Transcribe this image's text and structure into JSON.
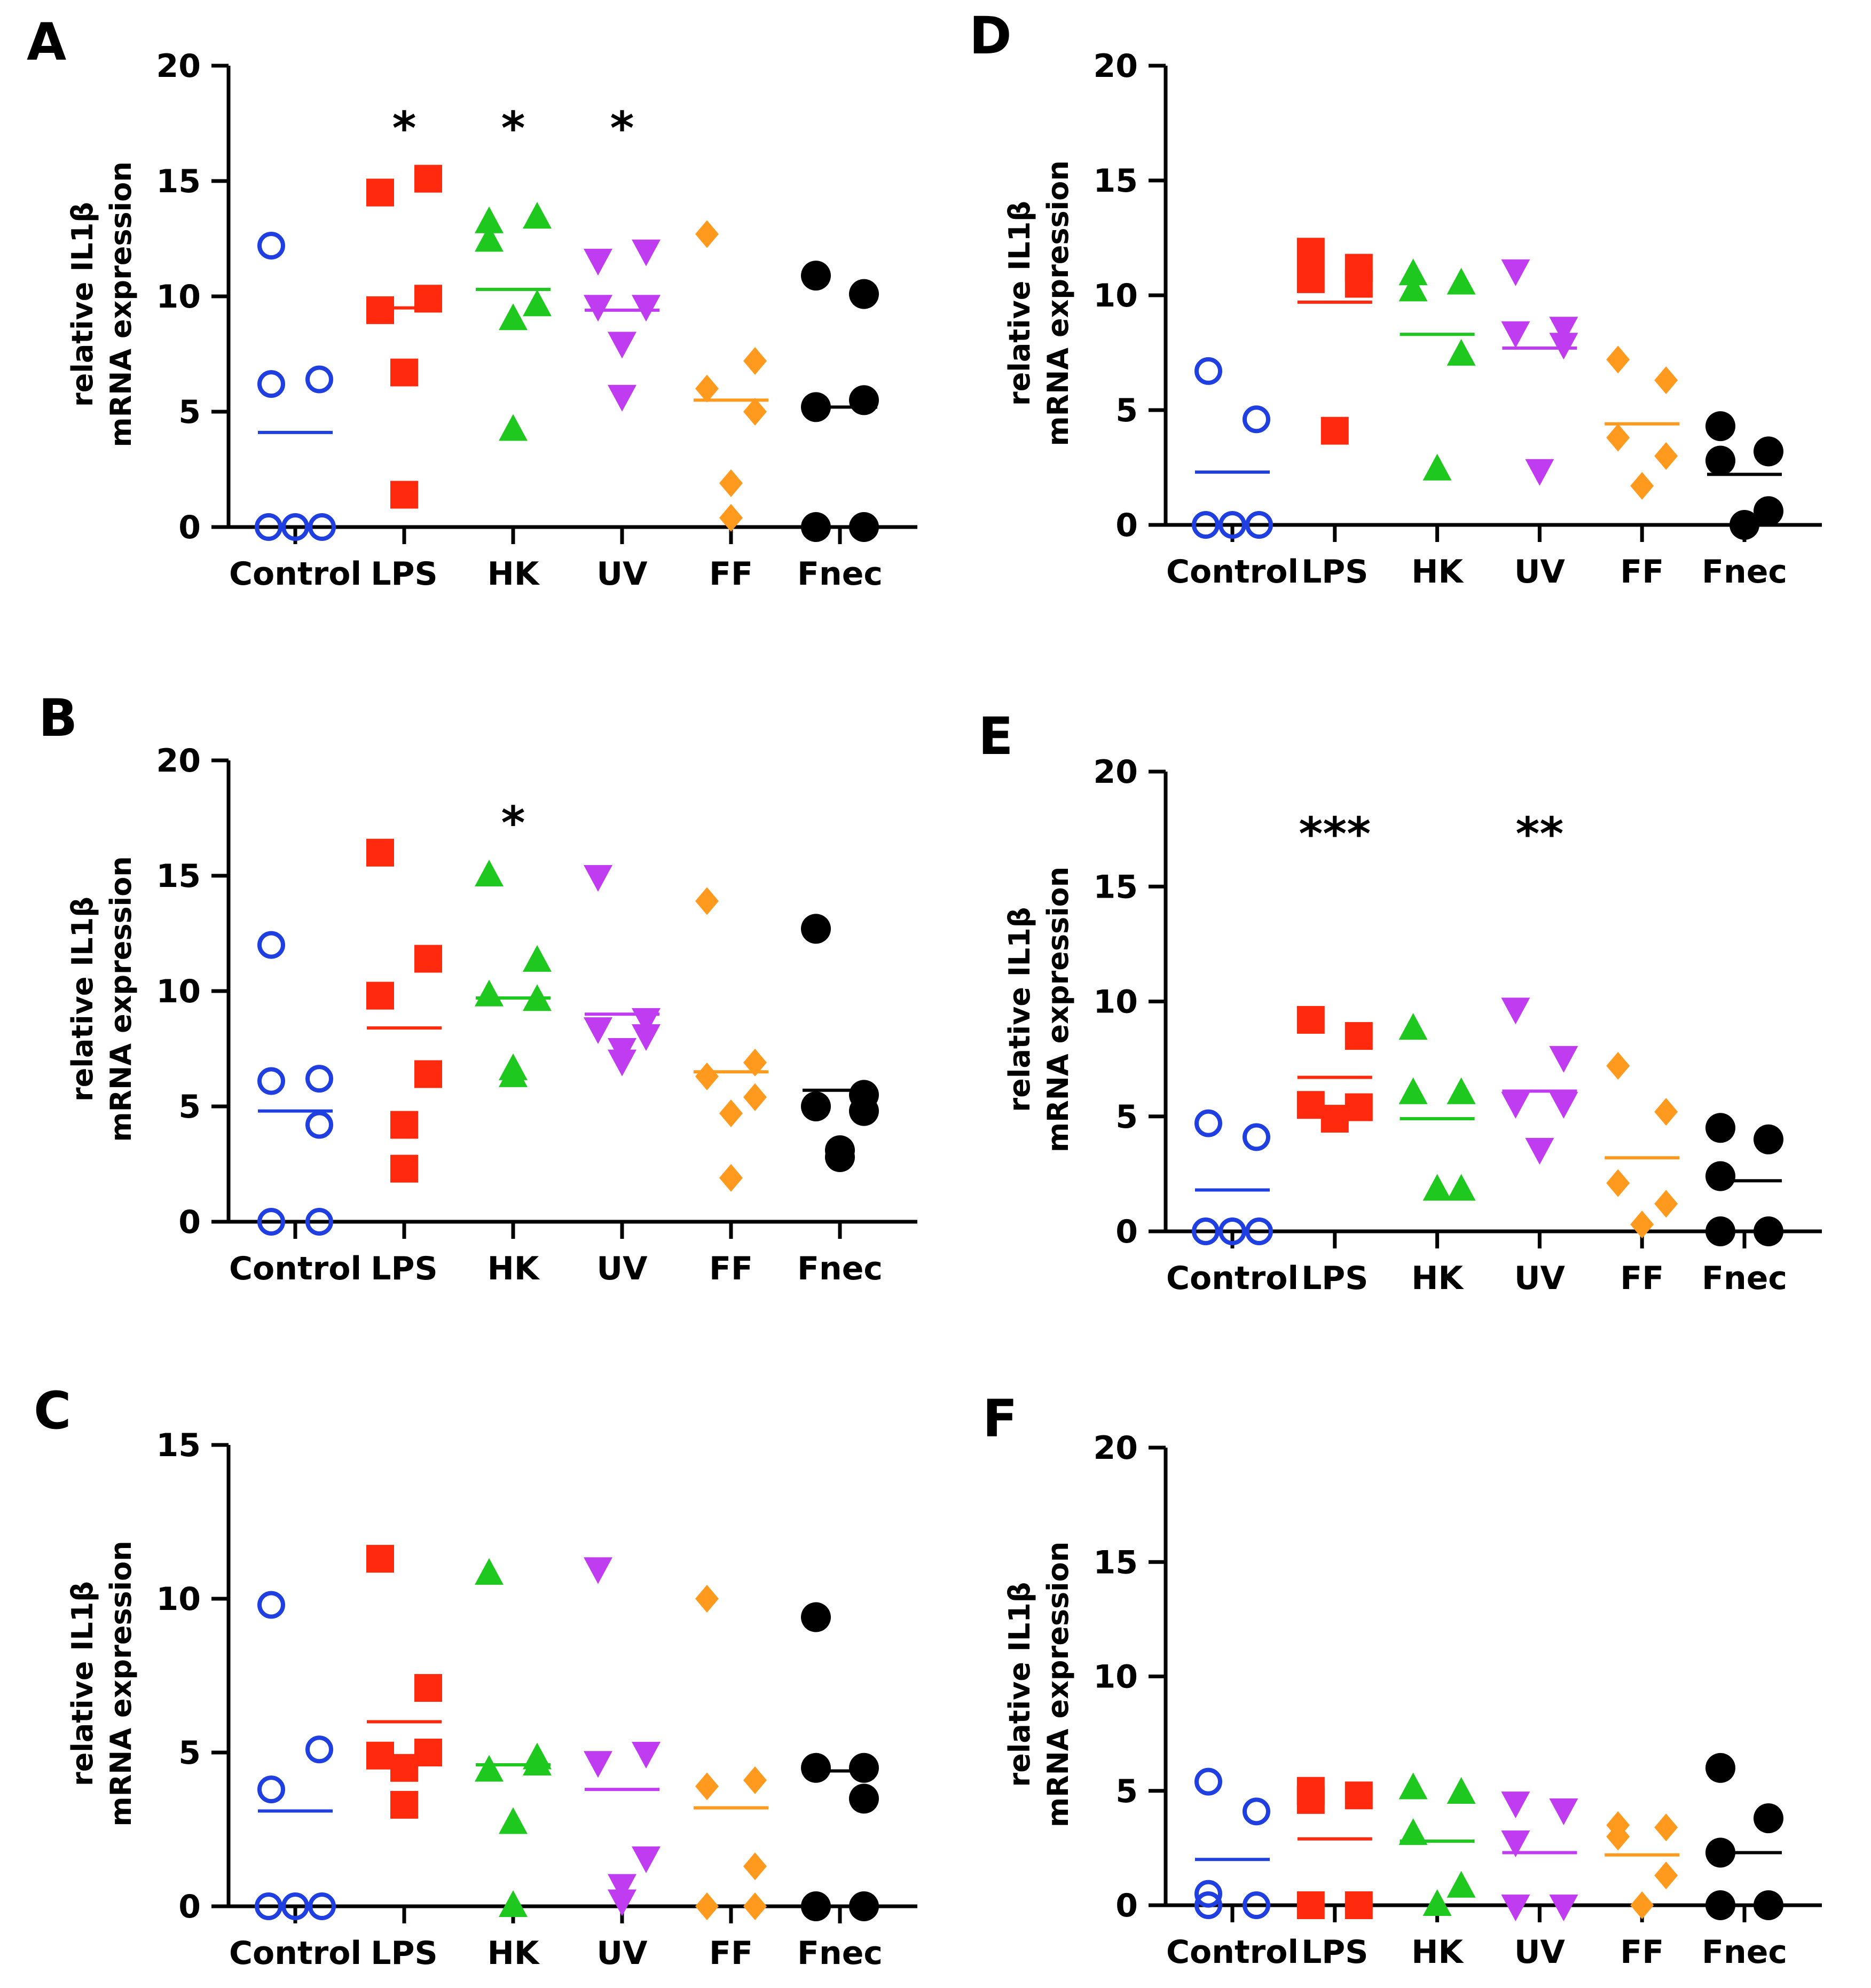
{
  "figure": {
    "category_colors": {
      "Control": "#1f3fe0",
      "LPS": "#ff2a0e",
      "HK": "#1ec81e",
      "UV": "#c03cf0",
      "FF": "#ff9a1e",
      "Fnec": "#000000"
    },
    "marker_shapes": {
      "Control": "open-circle",
      "LPS": "square",
      "HK": "triangle-up",
      "UV": "triangle-down",
      "FF": "diamond",
      "Fnec": "filled-circle"
    }
  },
  "chart_data": [
    {
      "panel": "A",
      "type": "scatter",
      "ylabel_line1": "relative IL1β",
      "ylabel_line2": "mRNA expression",
      "ylim": [
        0,
        20
      ],
      "yticks": [
        "0",
        "5",
        "10",
        "15",
        "20"
      ],
      "categories": [
        "Control",
        "LPS",
        "HK",
        "UV",
        "FF",
        "Fnec"
      ],
      "series": [
        {
          "name": "Control",
          "values": [
            12.2,
            6.4,
            6.2,
            0,
            0,
            0
          ],
          "median": 4.1,
          "significance": ""
        },
        {
          "name": "LPS",
          "values": [
            14.5,
            15.1,
            9.4,
            9.9,
            6.7,
            1.4
          ],
          "median": 9.5,
          "significance": "*"
        },
        {
          "name": "HK",
          "values": [
            13.2,
            13.4,
            12.4,
            9.6,
            9.0,
            4.2
          ],
          "median": 10.3,
          "significance": "*"
        },
        {
          "name": "UV",
          "values": [
            11.6,
            12.0,
            9.6,
            9.6,
            8.0,
            5.7
          ],
          "median": 9.4,
          "significance": "*"
        },
        {
          "name": "FF",
          "values": [
            12.7,
            7.2,
            6.0,
            5.0,
            1.9,
            0.4
          ],
          "median": 5.5,
          "significance": ""
        },
        {
          "name": "Fnec",
          "values": [
            10.9,
            10.1,
            5.2,
            5.5,
            0,
            0
          ],
          "median": 5.2,
          "significance": ""
        }
      ]
    },
    {
      "panel": "B",
      "type": "scatter",
      "ylabel_line1": "relative IL1β",
      "ylabel_line2": "mRNA expression",
      "ylim": [
        0,
        20
      ],
      "yticks": [
        "0",
        "5",
        "10",
        "15",
        "20"
      ],
      "categories": [
        "Control",
        "LPS",
        "HK",
        "UV",
        "FF",
        "Fnec"
      ],
      "series": [
        {
          "name": "Control",
          "values": [
            12.0,
            6.2,
            6.1,
            4.2,
            0,
            0
          ],
          "median": 4.8,
          "significance": ""
        },
        {
          "name": "LPS",
          "values": [
            16.0,
            11.4,
            9.8,
            6.4,
            4.2,
            2.3
          ],
          "median": 8.4,
          "significance": ""
        },
        {
          "name": "HK",
          "values": [
            15.0,
            11.3,
            9.8,
            9.6,
            6.3,
            6.6
          ],
          "median": 9.7,
          "significance": "*"
        },
        {
          "name": "UV",
          "values": [
            15.0,
            8.8,
            8.4,
            8.1,
            7.0,
            7.5
          ],
          "median": 9.0,
          "significance": ""
        },
        {
          "name": "FF",
          "values": [
            13.9,
            6.9,
            6.3,
            5.4,
            4.7,
            1.9
          ],
          "median": 6.5,
          "significance": ""
        },
        {
          "name": "Fnec",
          "values": [
            12.7,
            5.5,
            5.0,
            4.8,
            2.8,
            3.1
          ],
          "median": 5.7,
          "significance": ""
        }
      ]
    },
    {
      "panel": "C",
      "type": "scatter",
      "ylabel_line1": "relative IL1β",
      "ylabel_line2": "mRNA expression",
      "ylim": [
        0,
        15
      ],
      "yticks": [
        "0",
        "5",
        "10",
        "15"
      ],
      "categories": [
        "Control",
        "LPS",
        "HK",
        "UV",
        "FF",
        "Fnec"
      ],
      "series": [
        {
          "name": "Control",
          "values": [
            9.8,
            5.1,
            3.8,
            0,
            0,
            0
          ],
          "median": 3.1,
          "significance": ""
        },
        {
          "name": "LPS",
          "values": [
            11.3,
            7.1,
            4.9,
            5.0,
            4.5,
            3.3
          ],
          "median": 6.0,
          "significance": ""
        },
        {
          "name": "HK",
          "values": [
            10.8,
            4.8,
            4.4,
            4.6,
            2.7,
            0
          ],
          "median": 4.6,
          "significance": ""
        },
        {
          "name": "UV",
          "values": [
            11.0,
            5.0,
            4.7,
            1.6,
            0.7,
            0.2
          ],
          "median": 3.8,
          "significance": ""
        },
        {
          "name": "FF",
          "values": [
            10.0,
            4.1,
            3.9,
            1.3,
            0,
            0
          ],
          "median": 3.2,
          "significance": ""
        },
        {
          "name": "Fnec",
          "values": [
            9.4,
            4.5,
            4.5,
            3.5,
            0,
            0
          ],
          "median": 4.4,
          "significance": ""
        }
      ]
    },
    {
      "panel": "D",
      "type": "scatter",
      "ylabel_line1": "relative IL1β",
      "ylabel_line2": "mRNA expression",
      "ylim": [
        0,
        20
      ],
      "yticks": [
        "0",
        "5",
        "10",
        "15",
        "20"
      ],
      "categories": [
        "Control",
        "LPS",
        "HK",
        "UV",
        "FF",
        "Fnec"
      ],
      "series": [
        {
          "name": "Control",
          "values": [
            6.7,
            4.6,
            0,
            0,
            0
          ],
          "median": 2.3,
          "significance": ""
        },
        {
          "name": "LPS",
          "values": [
            11.9,
            11.2,
            10.7,
            10.5,
            4.1
          ],
          "median": 9.7,
          "significance": ""
        },
        {
          "name": "HK",
          "values": [
            10.9,
            10.5,
            10.2,
            7.4,
            2.4
          ],
          "median": 8.3,
          "significance": ""
        },
        {
          "name": "UV",
          "values": [
            11.1,
            8.6,
            8.4,
            7.9,
            2.4
          ],
          "median": 7.7,
          "significance": ""
        },
        {
          "name": "FF",
          "values": [
            7.2,
            6.3,
            3.8,
            3.0,
            1.7
          ],
          "median": 4.4,
          "significance": ""
        },
        {
          "name": "Fnec",
          "values": [
            4.3,
            3.2,
            2.8,
            0.6,
            0
          ],
          "median": 2.2,
          "significance": ""
        }
      ]
    },
    {
      "panel": "E",
      "type": "scatter",
      "ylabel_line1": "relative IL1β",
      "ylabel_line2": "mRNA expression",
      "ylim": [
        0,
        20
      ],
      "yticks": [
        "0",
        "5",
        "10",
        "15",
        "20"
      ],
      "categories": [
        "Control",
        "LPS",
        "HK",
        "UV",
        "FF",
        "Fnec"
      ],
      "series": [
        {
          "name": "Control",
          "values": [
            4.7,
            4.1,
            0,
            0,
            0
          ],
          "median": 1.8,
          "significance": ""
        },
        {
          "name": "LPS",
          "values": [
            9.2,
            8.5,
            5.5,
            5.4,
            4.9
          ],
          "median": 6.7,
          "significance": "***"
        },
        {
          "name": "HK",
          "values": [
            8.8,
            6.0,
            6.0,
            1.8,
            1.8
          ],
          "median": 4.9,
          "significance": ""
        },
        {
          "name": "UV",
          "values": [
            9.7,
            7.6,
            5.6,
            5.6,
            3.6
          ],
          "median": 6.1,
          "significance": "**"
        },
        {
          "name": "FF",
          "values": [
            7.2,
            5.2,
            2.1,
            1.2,
            0.3
          ],
          "median": 3.2,
          "significance": ""
        },
        {
          "name": "Fnec",
          "values": [
            4.5,
            4.0,
            2.4,
            0,
            0
          ],
          "median": 2.2,
          "significance": ""
        }
      ]
    },
    {
      "panel": "F",
      "type": "scatter",
      "ylabel_line1": "relative IL1β",
      "ylabel_line2": "mRNA expression",
      "ylim": [
        0,
        20
      ],
      "yticks": [
        "0",
        "5",
        "10",
        "15",
        "20"
      ],
      "categories": [
        "Control",
        "LPS",
        "HK",
        "UV",
        "FF",
        "Fnec"
      ],
      "series": [
        {
          "name": "Control",
          "values": [
            5.4,
            4.1,
            0.5,
            0,
            0
          ],
          "median": 2.0,
          "significance": ""
        },
        {
          "name": "LPS",
          "values": [
            5.0,
            4.8,
            4.6,
            0,
            0
          ],
          "median": 2.9,
          "significance": ""
        },
        {
          "name": "HK",
          "values": [
            5.1,
            4.9,
            3.1,
            0.8,
            0
          ],
          "median": 2.8,
          "significance": ""
        },
        {
          "name": "UV",
          "values": [
            4.5,
            4.2,
            2.8,
            0,
            0
          ],
          "median": 2.3,
          "significance": ""
        },
        {
          "name": "FF",
          "values": [
            3.5,
            3.4,
            3.0,
            1.3,
            0
          ],
          "median": 2.2,
          "significance": ""
        },
        {
          "name": "Fnec",
          "values": [
            6.0,
            3.8,
            2.3,
            0,
            0
          ],
          "median": 2.3,
          "significance": ""
        }
      ]
    }
  ]
}
